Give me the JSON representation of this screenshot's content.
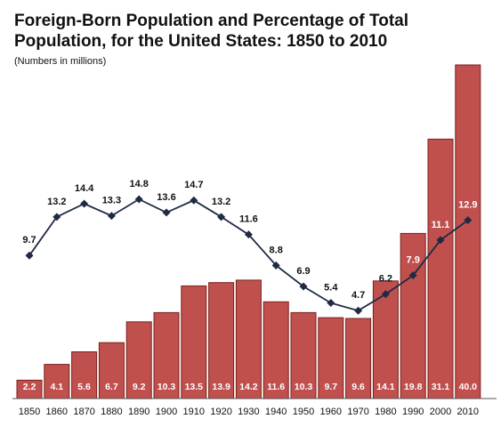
{
  "title": "Foreign-Born Population and Percentage of Total Population, for the United States: 1850 to 2010",
  "subtitle": "(Numbers in millions)",
  "chart_data": {
    "type": "bar",
    "categories": [
      "1850",
      "1860",
      "1870",
      "1880",
      "1890",
      "1900",
      "1910",
      "1920",
      "1930",
      "1940",
      "1950",
      "1960",
      "1970",
      "1980",
      "1990",
      "2000",
      "2010"
    ],
    "series": [
      {
        "type": "bar",
        "values": [
          2.2,
          4.1,
          5.6,
          6.7,
          9.2,
          10.3,
          13.5,
          13.9,
          14.2,
          11.6,
          10.3,
          9.7,
          9.6,
          14.1,
          19.8,
          31.1,
          40.0
        ],
        "value_labels": [
          "2.2",
          "4.1",
          "5.6",
          "6.7",
          "9.2",
          "10.3",
          "13.5",
          "13.9",
          "14.2",
          "11.6",
          "10.3",
          "9.7",
          "9.6",
          "14.1",
          "19.8",
          "31.1",
          "40.0"
        ]
      },
      {
        "type": "line",
        "values": [
          9.7,
          13.2,
          14.4,
          13.3,
          14.8,
          13.6,
          14.7,
          13.2,
          11.6,
          8.8,
          6.9,
          5.4,
          4.7,
          6.2,
          7.9,
          11.1,
          12.9
        ],
        "value_labels": [
          "9.7",
          "13.2",
          "14.4",
          "13.3",
          "14.8",
          "13.6",
          "14.7",
          "13.2",
          "11.6",
          "8.8",
          "6.9",
          "5.4",
          "4.7",
          "6.2",
          "7.9",
          "11.1",
          "12.9"
        ]
      }
    ],
    "colors": {
      "bar": "#c0504d",
      "bar_edge": "#7a1f1c",
      "line": "#1f2a44"
    }
  }
}
